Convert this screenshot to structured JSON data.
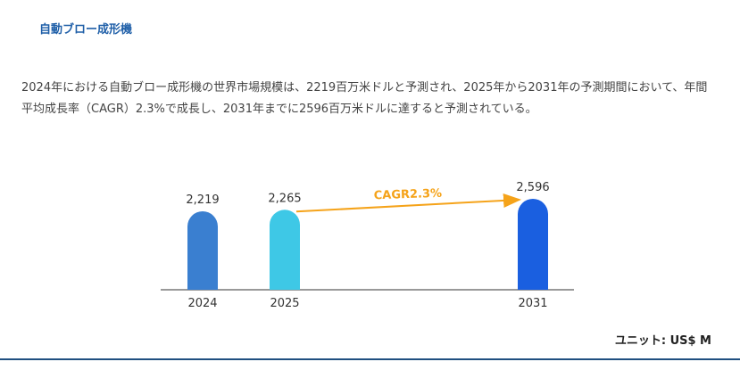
{
  "page": {
    "title": "自動ブロー成形機",
    "description": "2024年における自動ブロー成形機の世界市場規模は、2219百万米ドルと予測され、2025年から2031年の予測期間において、年間平均成長率（CAGR）2.3%で成長し、2031年までに2596百万米ドルに達すると予測されている。",
    "unit_label": "ユニット: US$ M"
  },
  "chart_data": {
    "type": "bar",
    "categories": [
      "2024",
      "2025",
      "2031"
    ],
    "values": [
      2219,
      2265,
      2596
    ],
    "value_labels": [
      "2,219",
      "2,265",
      "2,596"
    ],
    "colors": [
      "#3a7fd0",
      "#3ec8e6",
      "#1a5fe0"
    ],
    "annotation": {
      "text": "CAGR2.3%",
      "from": "2025",
      "to": "2031",
      "color": "#f5a31a"
    }
  }
}
